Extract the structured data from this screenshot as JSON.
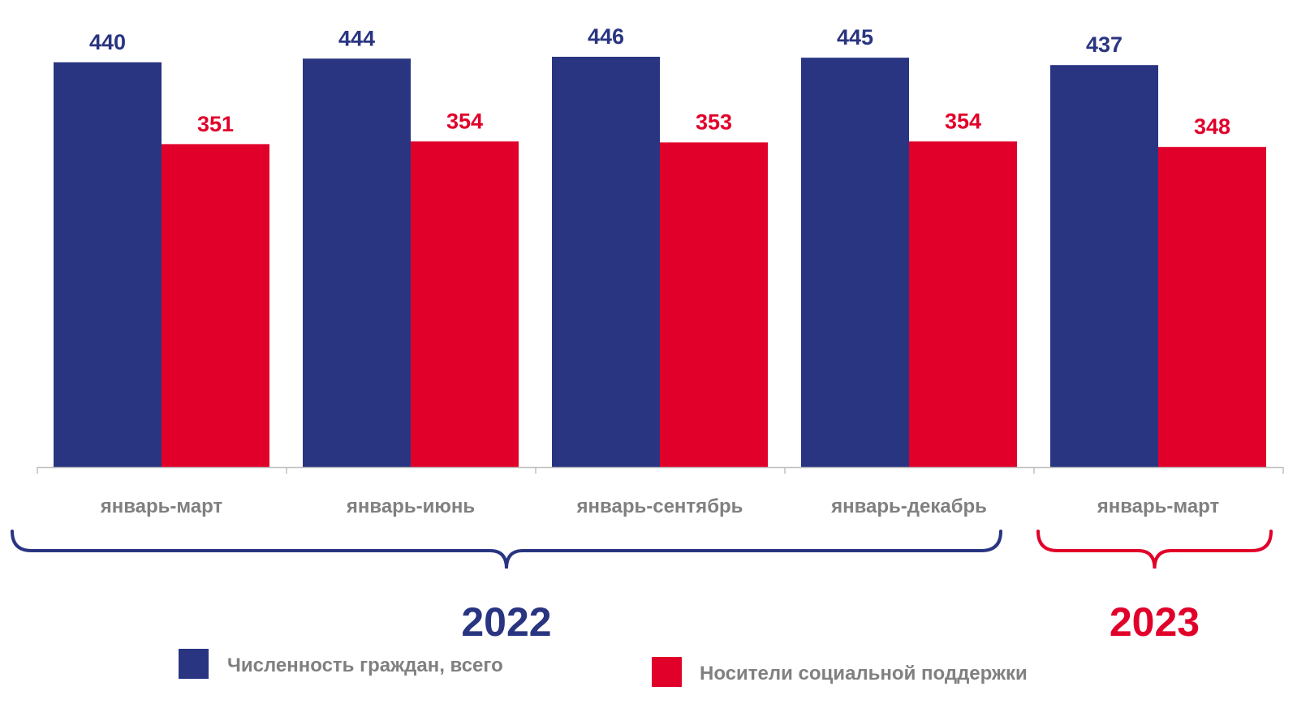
{
  "chart_data": {
    "type": "bar",
    "categories": [
      "январь-март",
      "январь-июнь",
      "январь-сентябрь",
      "январь-декабрь",
      "январь-март"
    ],
    "series": [
      {
        "name": "Численность граждан, всего",
        "color": "#293581",
        "values": [
          440,
          444,
          446,
          445,
          437
        ]
      },
      {
        "name": "Носители социальной поддержки",
        "color": "#e1002a",
        "values": [
          351,
          354,
          353,
          354,
          348
        ]
      }
    ],
    "groups": [
      {
        "label": "2022",
        "color": "#293581",
        "categories": [
          0,
          1,
          2,
          3
        ]
      },
      {
        "label": "2023",
        "color": "#e1002a",
        "categories": [
          4
        ]
      }
    ],
    "ylim": [
      0,
      446
    ],
    "grid": false,
    "legend": "bottom"
  }
}
